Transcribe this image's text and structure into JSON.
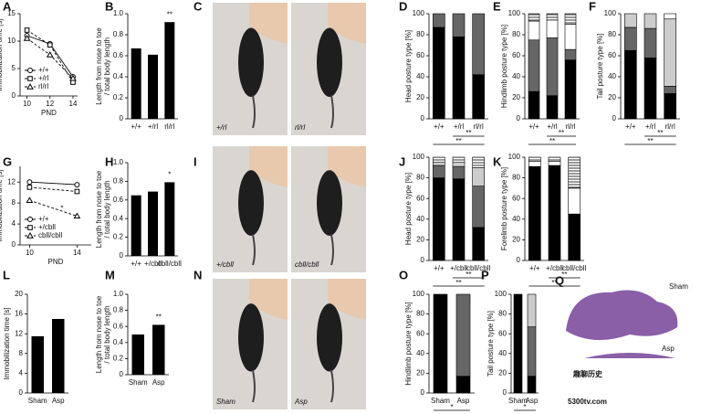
{
  "chart_data": [
    {
      "type": "line",
      "label": "A",
      "ylabel": [
        "Immobilization time [s]"
      ],
      "xlabel": "PND",
      "xlim": [
        9.4,
        14.4
      ],
      "xticks": [
        10,
        12,
        14
      ],
      "ylim": [
        0,
        15
      ],
      "yticks": [
        0,
        5,
        10,
        15
      ],
      "x": [
        10,
        12,
        14
      ],
      "series": [
        {
          "name": "+/+",
          "color": "#000",
          "marker": "circle",
          "dash": false,
          "values": [
            11,
            9.5,
            3.5
          ]
        },
        {
          "name": "+/rl",
          "color": "#000",
          "marker": "square",
          "dash": true,
          "values": [
            12,
            9.3,
            2.5
          ]
        },
        {
          "name": "rl/rl",
          "color": "#000",
          "marker": "triangle",
          "dash": true,
          "values": [
            10.5,
            7.5,
            3.2
          ]
        }
      ]
    },
    {
      "type": "bar",
      "label": "B",
      "ylabel": [
        "Length from nose to toe",
        "/ total body length"
      ],
      "ylim": [
        0,
        1
      ],
      "yticks": [
        0,
        0.2,
        0.4,
        0.6,
        0.8,
        {
          "value": 1,
          "label": "1.0"
        }
      ],
      "categories": [
        "+/+",
        "+/rl",
        "rl/rl"
      ],
      "values": [
        0.67,
        0.61,
        0.92
      ],
      "color": "#000",
      "value_annotations": [
        null,
        null,
        "**"
      ]
    },
    {
      "type": "stacked_bar",
      "label": "D",
      "ylabel": [
        "Head posture type [%]"
      ],
      "ylim": [
        0,
        100
      ],
      "yticks": [
        0,
        20,
        40,
        60,
        80,
        100
      ],
      "categories": [
        "+/+",
        "+/rl",
        "rl/rl"
      ],
      "significance": [
        "**",
        "**"
      ],
      "series": [
        {
          "color": "#000",
          "values": [
            87,
            78,
            42
          ]
        },
        {
          "color": "#666",
          "values": [
            13,
            22,
            58
          ]
        }
      ]
    },
    {
      "type": "stacked_bar",
      "label": "E",
      "ylabel": [
        "Hindlimb posture type [%]"
      ],
      "ylim": [
        0,
        100
      ],
      "yticks": [
        0,
        20,
        40,
        60,
        80,
        100
      ],
      "categories": [
        "+/+",
        "+/rl",
        "rl/rl"
      ],
      "significance": [
        "**",
        "**"
      ],
      "series": [
        {
          "color": "#000",
          "values": [
            26,
            22,
            56
          ]
        },
        {
          "color": "#666",
          "values": [
            49,
            55,
            10
          ]
        },
        {
          "color": "#fff",
          "values": [
            18,
            17,
            24
          ]
        },
        {
          "color": "hatch",
          "values": [
            7,
            6,
            10
          ]
        }
      ]
    },
    {
      "type": "stacked_bar",
      "label": "F",
      "ylabel": [
        "Tail posture type [%]"
      ],
      "ylim": [
        0,
        100
      ],
      "yticks": [
        0,
        20,
        40,
        60,
        80,
        100
      ],
      "categories": [
        "+/+",
        "+/rl",
        "rl/rl"
      ],
      "significance": [
        "**",
        "**"
      ],
      "series": [
        {
          "color": "#000",
          "values": [
            65,
            58,
            24
          ]
        },
        {
          "color": "#666",
          "values": [
            22,
            28,
            7
          ]
        },
        {
          "color": "#ccc",
          "values": [
            13,
            14,
            64
          ]
        },
        {
          "color": "#fff",
          "values": [
            0,
            0,
            5
          ]
        }
      ]
    },
    {
      "type": "line",
      "label": "G",
      "ylabel": [
        "Immobilization time [s]"
      ],
      "xlabel": "PND",
      "xlim": [
        9.2,
        15.2
      ],
      "xticks": [
        10,
        14
      ],
      "ylim": [
        0,
        15
      ],
      "yticks": [
        0,
        4,
        8,
        12
      ],
      "x": [
        10,
        14
      ],
      "annotation": "*",
      "series": [
        {
          "name": "+/+",
          "color": "#000",
          "marker": "circle",
          "dash": false,
          "values": [
            12,
            11.5
          ]
        },
        {
          "name": "+/cbll",
          "color": "#000",
          "marker": "square",
          "dash": true,
          "values": [
            11,
            10.2
          ]
        },
        {
          "name": "cbll/cbll",
          "color": "#000",
          "marker": "triangle",
          "dash": true,
          "values": [
            8.5,
            5.5
          ]
        }
      ]
    },
    {
      "type": "bar",
      "label": "H",
      "ylabel": [
        "Length from nose to toe",
        "/ total body length"
      ],
      "ylim": [
        0,
        1
      ],
      "yticks": [
        0,
        0.2,
        0.4,
        0.6,
        0.8,
        {
          "value": 1,
          "label": "1.0"
        }
      ],
      "categories": [
        "+/+",
        "+/cbll",
        "cbll/cbll"
      ],
      "values": [
        0.65,
        0.69,
        0.79
      ],
      "color": "#000",
      "value_annotations": [
        null,
        null,
        "*"
      ]
    },
    {
      "type": "stacked_bar",
      "label": "J",
      "ylabel": [
        "Head posture type [%]"
      ],
      "ylim": [
        0,
        100
      ],
      "yticks": [
        0,
        20,
        40,
        60,
        80,
        100
      ],
      "categories": [
        "+/+",
        "+/cbll",
        "cbll/cbll"
      ],
      "significance": [
        "**",
        "**"
      ],
      "series": [
        {
          "color": "#000",
          "values": [
            80,
            79,
            32
          ]
        },
        {
          "color": "#666",
          "values": [
            12,
            12,
            40
          ]
        },
        {
          "color": "#ccc",
          "values": [
            3,
            4,
            18
          ]
        },
        {
          "color": "hatch",
          "values": [
            5,
            5,
            10
          ]
        }
      ]
    },
    {
      "type": "stacked_bar",
      "label": "K",
      "ylabel": [
        "Forelimb posture type [%]"
      ],
      "ylim": [
        0,
        100
      ],
      "yticks": [
        0,
        20,
        40,
        60,
        80,
        100
      ],
      "categories": [
        "+/+",
        "+/cbll",
        "cbll/cbll"
      ],
      "significance": [
        "**",
        "**"
      ],
      "series": [
        {
          "color": "#000",
          "values": [
            91,
            92,
            45
          ]
        },
        {
          "color": "#fff",
          "values": [
            5,
            4,
            25
          ]
        },
        {
          "color": "hatch",
          "values": [
            4,
            4,
            30
          ]
        }
      ]
    },
    {
      "type": "bar",
      "label": "L",
      "ylabel": [
        "Immobilization time [s]"
      ],
      "ylim": [
        0,
        20
      ],
      "yticks": [
        0,
        4,
        8,
        12,
        16,
        20
      ],
      "categories": [
        "Sham",
        "Asp"
      ],
      "values": [
        11.5,
        15
      ],
      "color": "#000",
      "value_annotations": [
        null,
        null
      ]
    },
    {
      "type": "bar",
      "label": "M",
      "ylabel": [
        "Length from nose to toe",
        "/ total body length"
      ],
      "ylim": [
        0,
        1
      ],
      "yticks": [
        0,
        0.2,
        0.4,
        0.6,
        0.8,
        {
          "value": 1,
          "label": "1.0"
        }
      ],
      "categories": [
        "Sham",
        "Asp"
      ],
      "values": [
        0.5,
        0.62
      ],
      "color": "#000",
      "value_annotations": [
        null,
        "**"
      ]
    },
    {
      "type": "stacked_bar",
      "label": "O",
      "ylabel": [
        "Hindlimb posture type [%]"
      ],
      "ylim": [
        0,
        100
      ],
      "yticks": [
        0,
        20,
        40,
        60,
        80,
        100
      ],
      "categories": [
        "Sham",
        "Asp"
      ],
      "significance": [
        "*"
      ],
      "series": [
        {
          "color": "#000",
          "values": [
            100,
            17
          ]
        },
        {
          "color": "#666",
          "values": [
            0,
            83
          ]
        }
      ]
    },
    {
      "type": "stacked_bar",
      "label": "P",
      "ylabel": [
        "Tail posture type [%]"
      ],
      "ylim": [
        0,
        100
      ],
      "yticks": [
        0,
        20,
        40,
        60,
        80,
        100
      ],
      "categories": [
        "Sham",
        "Asp"
      ],
      "significance": [
        "*"
      ],
      "series": [
        {
          "color": "#000",
          "values": [
            100,
            17
          ]
        },
        {
          "color": "#666",
          "values": [
            0,
            50
          ]
        },
        {
          "color": "#ccc",
          "values": [
            0,
            33
          ]
        }
      ]
    }
  ],
  "photos": [
    {
      "label": "C",
      "captions": [
        "+/rl",
        "rl/rl"
      ]
    },
    {
      "label": "I",
      "captions": [
        "+/cbll",
        "cbll/cbll"
      ]
    },
    {
      "label": "N",
      "captions": [
        "Sham",
        "Asp"
      ]
    }
  ],
  "histology": {
    "label": "Q",
    "captions": [
      "Sham",
      "Asp"
    ]
  },
  "watermark": [
    "趣聊历史",
    "5300tv.com"
  ]
}
